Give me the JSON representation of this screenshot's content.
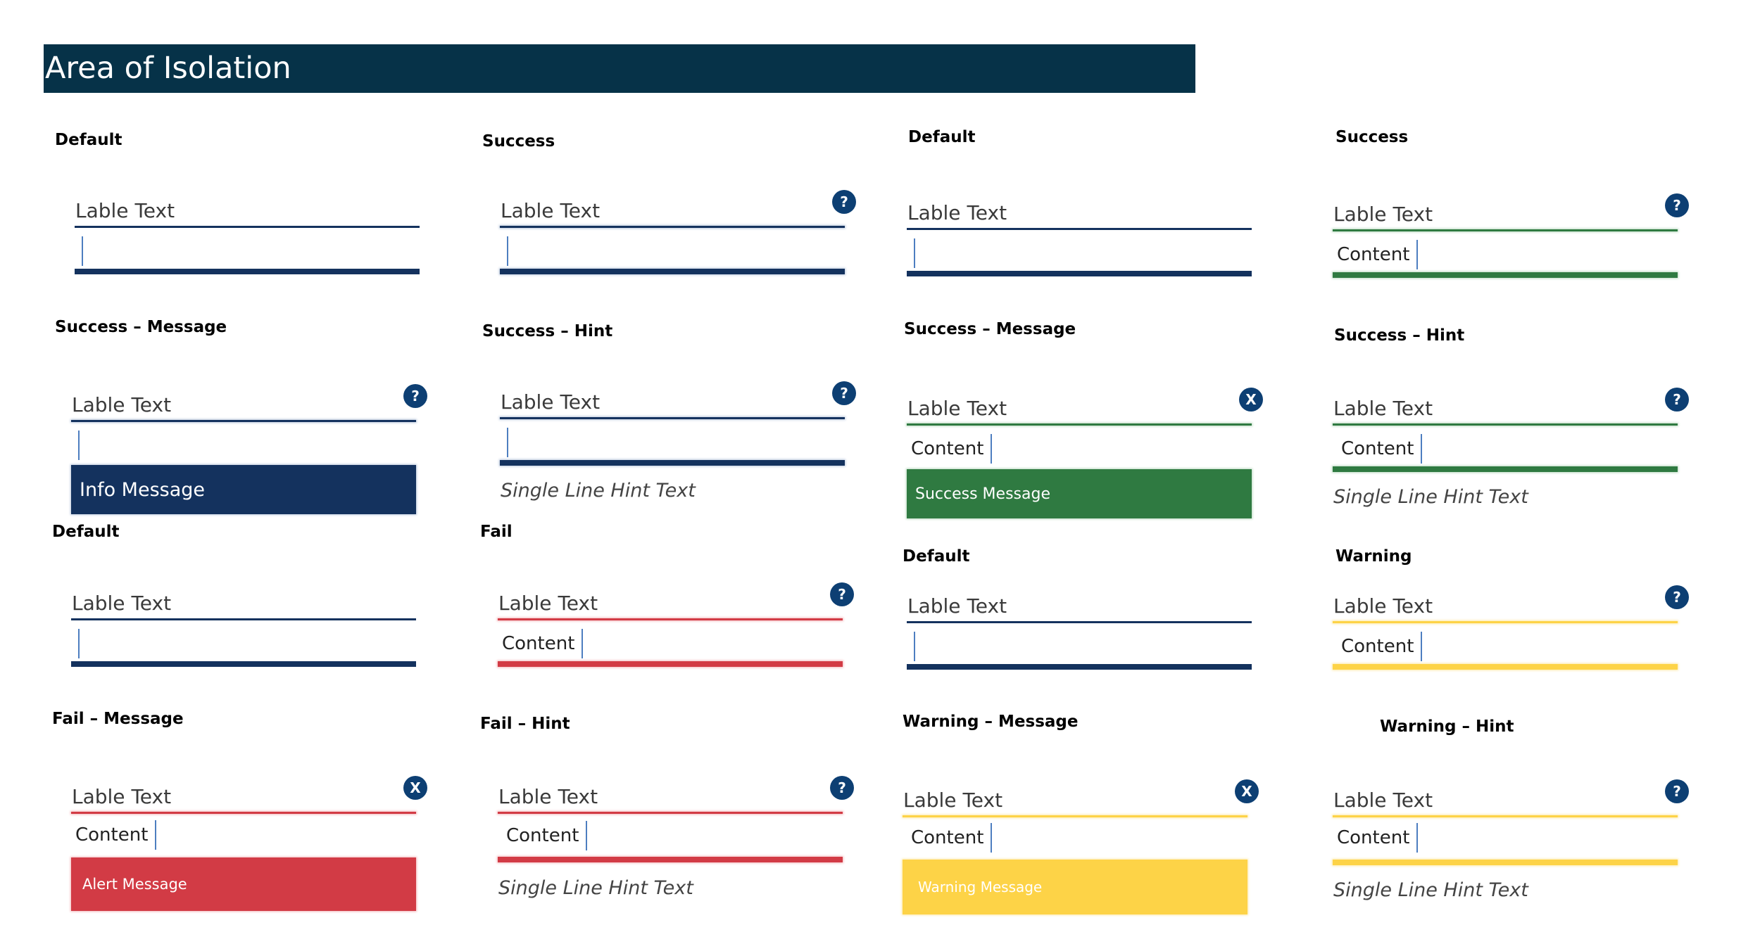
{
  "page_title": "Area of Isolation",
  "sections": {
    "r1c1": {
      "title": "Default",
      "label": "Lable Text",
      "content": ""
    },
    "r1c2": {
      "title": "Success",
      "label": "Lable Text",
      "content": ""
    },
    "r1c3": {
      "title": "Default",
      "label": "Lable Text",
      "content": ""
    },
    "r1c4": {
      "title": "Success",
      "label": "Lable Text",
      "content": "Content"
    },
    "r2c1": {
      "title": "Success – Message",
      "label": "Lable Text",
      "content": "",
      "message": "Info Message"
    },
    "r2c2": {
      "title": "Success – Hint",
      "label": "Lable Text",
      "content": "",
      "hint": "Single Line Hint Text"
    },
    "r2c3": {
      "title": "Success – Message",
      "label": "Lable Text",
      "content": "Content",
      "message": "Success Message"
    },
    "r2c4": {
      "title": "Success – Hint",
      "label": "Lable Text",
      "content": "Content",
      "hint": "Single Line Hint Text"
    },
    "r3c1": {
      "title": "Default",
      "label": "Lable Text",
      "content": ""
    },
    "r3c2": {
      "title": "Fail",
      "label": "Lable Text",
      "content": "Content"
    },
    "r3c3": {
      "title": "Default",
      "label": "Lable Text",
      "content": ""
    },
    "r3c4": {
      "title": "Warning",
      "label": "Lable Text",
      "content": "Content"
    },
    "r4c1": {
      "title": "Fail – Message",
      "label": "Lable Text",
      "content": "Content",
      "message": "Alert Message"
    },
    "r4c2": {
      "title": "Fail – Hint",
      "label": "Lable Text",
      "content": "Content",
      "hint": "Single Line Hint Text"
    },
    "r4c3": {
      "title": "Warning – Message",
      "label": "Lable Text",
      "content": "Content",
      "message": "Warning Message"
    },
    "r4c4": {
      "title": "Warning – Hint",
      "label": "Lable Text",
      "content": "Content",
      "hint": "Single Line Hint Text"
    }
  },
  "icons": {
    "help_glyph": "?",
    "clear_glyph": "X",
    "help": "help-icon",
    "clear": "clear-icon"
  },
  "colors": {
    "title_bar": "#063248",
    "default": "#14325e",
    "fail": "#d23b45",
    "success": "#2f7a41",
    "warning": "#fdd347",
    "info": "#14325e",
    "icon": "#0d3f73"
  }
}
